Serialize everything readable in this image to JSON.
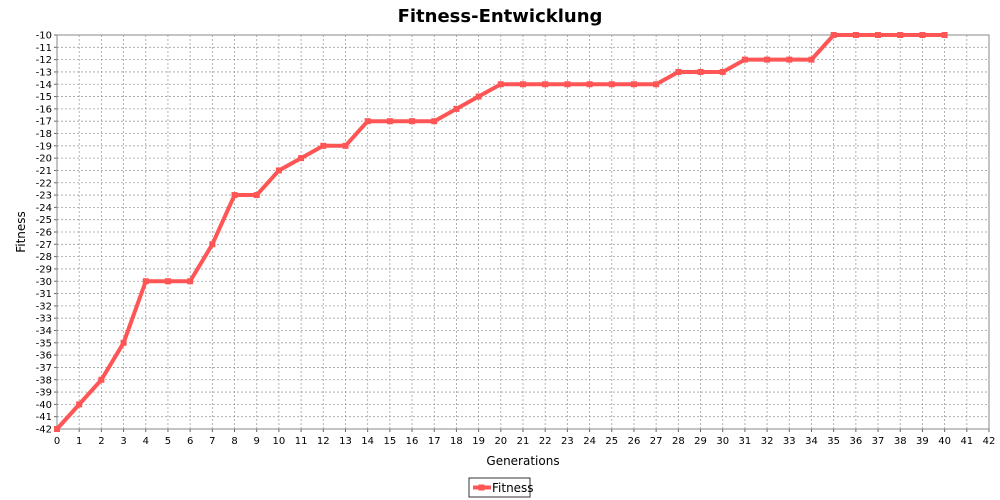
{
  "chart_data": {
    "type": "line",
    "title": "Fitness-Entwicklung",
    "xlabel": "Generations",
    "ylabel": "Fitness",
    "xlim": [
      0,
      42
    ],
    "ylim": [
      -42,
      -10
    ],
    "x_ticks": [
      0,
      1,
      2,
      3,
      4,
      5,
      6,
      7,
      8,
      9,
      10,
      11,
      12,
      13,
      14,
      15,
      16,
      17,
      18,
      19,
      20,
      21,
      22,
      23,
      24,
      25,
      26,
      27,
      28,
      29,
      30,
      31,
      32,
      33,
      34,
      35,
      36,
      37,
      38,
      39,
      40,
      41,
      42
    ],
    "y_ticks": [
      -10,
      -11,
      -12,
      -13,
      -14,
      -15,
      -16,
      -17,
      -18,
      -19,
      -20,
      -21,
      -22,
      -23,
      -24,
      -25,
      -26,
      -27,
      -28,
      -29,
      -30,
      -31,
      -32,
      -33,
      -34,
      -35,
      -36,
      -37,
      -38,
      -39,
      -40,
      -41,
      -42
    ],
    "grid": true,
    "legend_position": "bottom",
    "series": [
      {
        "name": "Fitness",
        "color": "#ff5555",
        "x": [
          0,
          1,
          2,
          3,
          4,
          5,
          6,
          7,
          8,
          9,
          10,
          11,
          12,
          13,
          14,
          15,
          16,
          17,
          18,
          19,
          20,
          21,
          22,
          23,
          24,
          25,
          26,
          27,
          28,
          29,
          30,
          31,
          32,
          33,
          34,
          35,
          36,
          37,
          38,
          39,
          40
        ],
        "values": [
          -42,
          -40,
          -38,
          -35,
          -30,
          -30,
          -30,
          -27,
          -23,
          -23,
          -21,
          -20,
          -19,
          -19,
          -17,
          -17,
          -17,
          -17,
          -16,
          -15,
          -14,
          -14,
          -14,
          -14,
          -14,
          -14,
          -14,
          -14,
          -13,
          -13,
          -13,
          -12,
          -12,
          -12,
          -12,
          -10,
          -10,
          -10,
          -10,
          -10,
          -10
        ]
      }
    ]
  }
}
